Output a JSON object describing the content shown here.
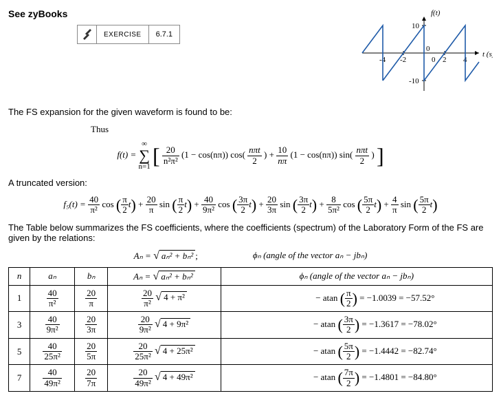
{
  "title": "See zyBooks",
  "exercise": {
    "label": "EXERCISE",
    "number": "6.7.1"
  },
  "graph": {
    "y_label": "f(t)",
    "x_label": "t (s)",
    "x_ticks": [
      "-4",
      "-2",
      "0",
      "2",
      "4"
    ],
    "y_ticks_pos": "10",
    "y_ticks_neg": "-10",
    "line_color": "#1e5aa8"
  },
  "para1": "The FS expansion for the given waveform is found to be:",
  "thus": "Thus",
  "fs_full": {
    "lhs": "f(t) =",
    "sum_top": "∞",
    "sum_bot": "n=1",
    "coef1_num": "20",
    "coef1_den": "n²π²",
    "inner1": "(1 − cos(nπ)) cos(",
    "arg1_num": "nπt",
    "arg1_den": "2",
    "close1": ") +",
    "coef2_num": "10",
    "coef2_den": "nπ",
    "inner2": "(1 − cos(nπ)) sin(",
    "arg2_num": "nπt",
    "arg2_den": "2",
    "close2": ")"
  },
  "para2": "A truncated version:",
  "truncated": {
    "lhs": "f₅(t) =",
    "terms": [
      {
        "cn": "40",
        "cd": "π²",
        "fn": "cos",
        "an": "π",
        "ad": "2",
        "tail": "t"
      },
      {
        "cn": "20",
        "cd": "π",
        "fn": "sin",
        "an": "π",
        "ad": "2",
        "tail": "t"
      },
      {
        "cn": "40",
        "cd": "9π²",
        "fn": "cos",
        "an": "3π",
        "ad": "2",
        "tail": "t"
      },
      {
        "cn": "20",
        "cd": "3π",
        "fn": "sin",
        "an": "3π",
        "ad": "2",
        "tail": "t"
      },
      {
        "cn": "8",
        "cd": "5π²",
        "fn": "cos",
        "an": "5π",
        "ad": "2",
        "tail": "t"
      },
      {
        "cn": "4",
        "cd": "π",
        "fn": "sin",
        "an": "5π",
        "ad": "2",
        "tail": "t"
      }
    ]
  },
  "para3": "The Table below summarizes the FS coefficients, where the coefficients (spectrum) of the Laboratory Form of the FS are given by the relations:",
  "formula_row": {
    "An": "Aₙ = ",
    "An_arg": "aₙ² + bₙ²",
    "sep": ";",
    "phi": "ϕₙ (angle of the vector aₙ − jbₙ)"
  },
  "table": {
    "headers": {
      "n": "n",
      "an": "aₙ",
      "bn": "bₙ",
      "An_lhs": "Aₙ = ",
      "An_arg": "aₙ² + bₙ²",
      "phi": "ϕₙ (angle of the vector aₙ − jbₙ)"
    },
    "rows": [
      {
        "n": "1",
        "an_n": "40",
        "an_d": "π²",
        "bn_n": "20",
        "bn_d": "π",
        "An_cn": "20",
        "An_cd": "π²",
        "An_rad": "4 + π²",
        "phi_an": "π",
        "phi_ad": "2",
        "phi_rad": "−1.0039",
        "phi_deg": "−57.52°"
      },
      {
        "n": "3",
        "an_n": "40",
        "an_d": "9π²",
        "bn_n": "20",
        "bn_d": "3π",
        "An_cn": "20",
        "An_cd": "9π²",
        "An_rad": "4 + 9π²",
        "phi_an": "3π",
        "phi_ad": "2",
        "phi_rad": "−1.3617",
        "phi_deg": "−78.02°"
      },
      {
        "n": "5",
        "an_n": "40",
        "an_d": "25π²",
        "bn_n": "20",
        "bn_d": "5π",
        "An_cn": "20",
        "An_cd": "25π²",
        "An_rad": "4 + 25π²",
        "phi_an": "5π",
        "phi_ad": "2",
        "phi_rad": "−1.4442",
        "phi_deg": "−82.74°"
      },
      {
        "n": "7",
        "an_n": "40",
        "an_d": "49π²",
        "bn_n": "20",
        "bn_d": "7π",
        "An_cn": "20",
        "An_cd": "49π²",
        "An_rad": "4 + 49π²",
        "phi_an": "7π",
        "phi_ad": "2",
        "phi_rad": "−1.4801",
        "phi_deg": "−84.80°"
      }
    ]
  }
}
